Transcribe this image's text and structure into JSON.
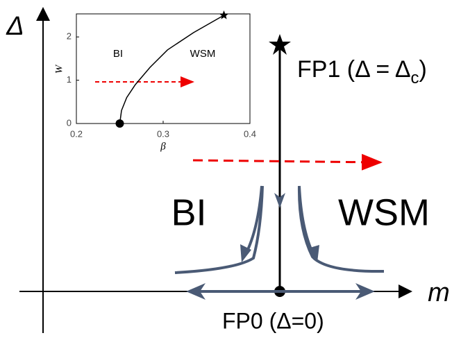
{
  "diagram": {
    "axis_labels": {
      "vertical": "Δ",
      "horizontal": "m"
    },
    "fp1": {
      "label": "FP1 (Δ = Δ",
      "subscript": "c",
      "suffix": ")"
    },
    "fp0": {
      "label": "FP0 (Δ=0)"
    },
    "regions": {
      "left": "BI",
      "right": "WSM"
    }
  },
  "inset": {
    "xlabel": "β",
    "ylabel": "W",
    "xlim": [
      0.2,
      0.4
    ],
    "ylim": [
      0,
      2.5
    ],
    "xticks": [
      0.2,
      0.3,
      0.4
    ],
    "yticks": [
      0,
      1,
      2
    ],
    "regions": {
      "left": "BI",
      "right": "WSM"
    },
    "curve": {
      "x": [
        0.25,
        0.252,
        0.258,
        0.268,
        0.285,
        0.305,
        0.335,
        0.37
      ],
      "y": [
        0,
        0.3,
        0.6,
        0.9,
        1.3,
        1.7,
        2.1,
        2.5
      ]
    }
  }
}
